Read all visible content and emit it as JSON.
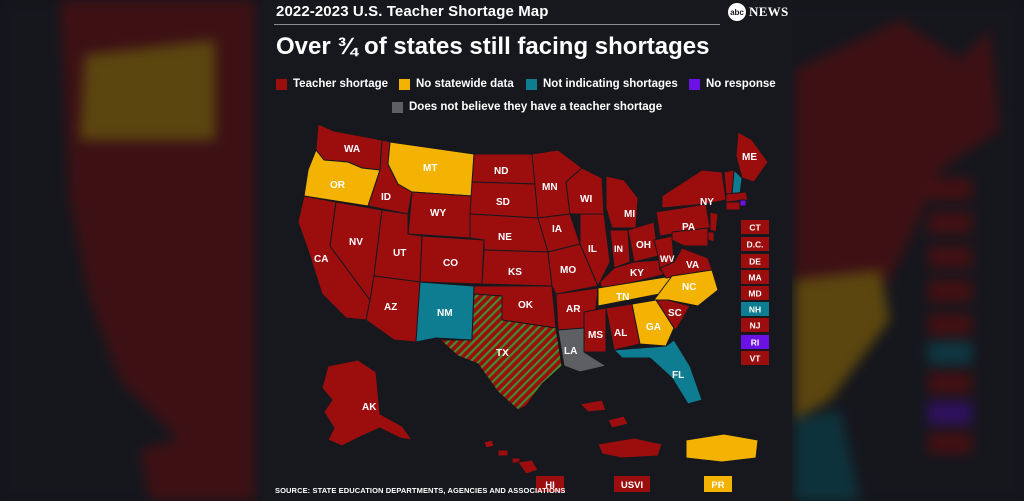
{
  "header": {
    "kicker": "2022-2023 U.S. Teacher Shortage Map",
    "headline": "Over ¾ of states still facing shortages",
    "logo_mark": "abc",
    "logo_word": "NEWS"
  },
  "colors": {
    "shortage": "#9c0e0e",
    "no_data": "#f4b303",
    "not_indicating": "#0e7d91",
    "no_response": "#6a11e6",
    "no_shortage": "#5d5f63",
    "texas_stripe": "#3b8f2e"
  },
  "legend": [
    {
      "key": "shortage",
      "label": "Teacher shortage"
    },
    {
      "key": "no_data",
      "label": "No statewide data"
    },
    {
      "key": "not_indicating",
      "label": "Not indicating shortages"
    },
    {
      "key": "no_response",
      "label": "No response"
    },
    {
      "key": "no_shortage",
      "label": "Does not believe they have a teacher shortage"
    }
  ],
  "states": [
    {
      "abbr": "WA",
      "status": "shortage"
    },
    {
      "abbr": "OR",
      "status": "no_data"
    },
    {
      "abbr": "CA",
      "status": "shortage"
    },
    {
      "abbr": "ID",
      "status": "shortage"
    },
    {
      "abbr": "NV",
      "status": "shortage"
    },
    {
      "abbr": "MT",
      "status": "no_data"
    },
    {
      "abbr": "WY",
      "status": "shortage"
    },
    {
      "abbr": "UT",
      "status": "shortage"
    },
    {
      "abbr": "AZ",
      "status": "shortage"
    },
    {
      "abbr": "CO",
      "status": "shortage"
    },
    {
      "abbr": "NM",
      "status": "not_indicating"
    },
    {
      "abbr": "ND",
      "status": "shortage"
    },
    {
      "abbr": "SD",
      "status": "shortage"
    },
    {
      "abbr": "NE",
      "status": "shortage"
    },
    {
      "abbr": "KS",
      "status": "shortage"
    },
    {
      "abbr": "OK",
      "status": "shortage"
    },
    {
      "abbr": "TX",
      "status": "shortage_striped"
    },
    {
      "abbr": "MN",
      "status": "shortage"
    },
    {
      "abbr": "IA",
      "status": "shortage"
    },
    {
      "abbr": "MO",
      "status": "shortage"
    },
    {
      "abbr": "AR",
      "status": "shortage"
    },
    {
      "abbr": "LA",
      "status": "no_shortage"
    },
    {
      "abbr": "WI",
      "status": "shortage"
    },
    {
      "abbr": "IL",
      "status": "shortage"
    },
    {
      "abbr": "MS",
      "status": "shortage"
    },
    {
      "abbr": "MI",
      "status": "shortage"
    },
    {
      "abbr": "IN",
      "status": "shortage"
    },
    {
      "abbr": "OH",
      "status": "shortage"
    },
    {
      "abbr": "KY",
      "status": "shortage"
    },
    {
      "abbr": "TN",
      "status": "no_data"
    },
    {
      "abbr": "AL",
      "status": "shortage"
    },
    {
      "abbr": "GA",
      "status": "no_data"
    },
    {
      "abbr": "FL",
      "status": "not_indicating"
    },
    {
      "abbr": "WV",
      "status": "shortage"
    },
    {
      "abbr": "VA",
      "status": "shortage"
    },
    {
      "abbr": "NC",
      "status": "no_data"
    },
    {
      "abbr": "SC",
      "status": "shortage"
    },
    {
      "abbr": "PA",
      "status": "shortage"
    },
    {
      "abbr": "NY",
      "status": "shortage"
    },
    {
      "abbr": "ME",
      "status": "shortage"
    },
    {
      "abbr": "AK",
      "status": "shortage"
    }
  ],
  "small_states": [
    {
      "abbr": "CT",
      "status": "shortage"
    },
    {
      "abbr": "D.C.",
      "status": "shortage"
    },
    {
      "abbr": "DE",
      "status": "shortage"
    },
    {
      "abbr": "MA",
      "status": "shortage"
    },
    {
      "abbr": "MD",
      "status": "shortage"
    },
    {
      "abbr": "NH",
      "status": "not_indicating"
    },
    {
      "abbr": "RI",
      "status": "no_response"
    },
    {
      "abbr": "NJ",
      "status": "shortage"
    },
    {
      "abbr": "VT",
      "status": "shortage"
    }
  ],
  "territories": [
    {
      "abbr": "HI",
      "status": "shortage"
    },
    {
      "abbr": "USVI",
      "status": "shortage"
    },
    {
      "abbr": "PR",
      "status": "no_data"
    }
  ],
  "source": "SOURCE: STATE EDUCATION DEPARTMENTS, AGENCIES AND ASSOCIATIONS"
}
